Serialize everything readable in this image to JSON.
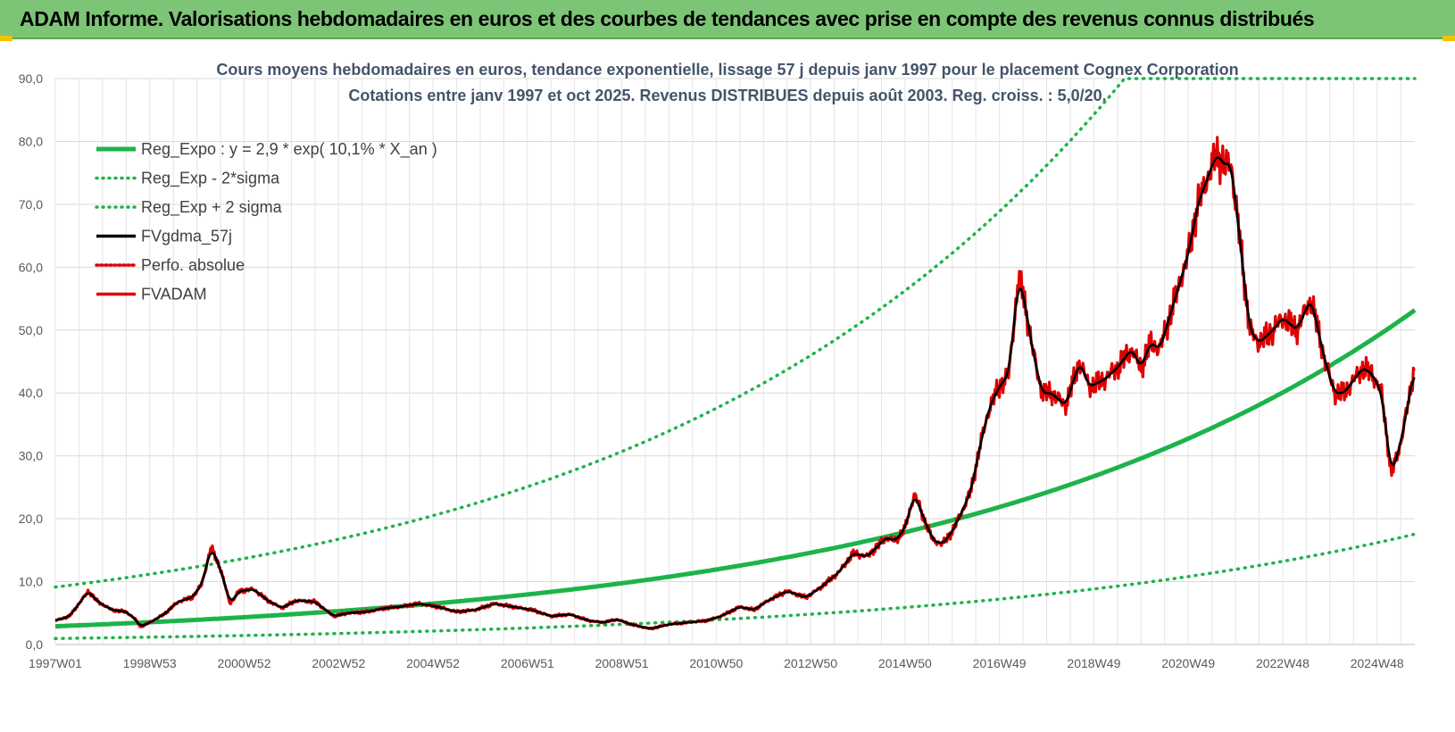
{
  "header": {
    "title": "ADAM Informe. Valorisations hebdomadaires en euros et des courbes de tendances avec prise en compte des revenus connus distribués"
  },
  "chart_data": {
    "type": "line",
    "title": "Cours moyens hebdomadaires en euros, tendance exponentielle, lissage 57 j depuis janv 1997 pour le placement Cognex Corporation",
    "subtitle": "Cotations entre janv 1997 et oct 2025. Revenus DISTRIBUES depuis août 2003. Reg. croiss. : 5,0/20.",
    "xlabel": "",
    "ylabel": "",
    "ylim": [
      0,
      90
    ],
    "xlim": [
      1997.0,
      2025.8
    ],
    "grid": true,
    "legend_position": "top-left",
    "y_ticks": [
      "0,0",
      "10,0",
      "20,0",
      "30,0",
      "40,0",
      "50,0",
      "60,0",
      "70,0",
      "80,0",
      "90,0"
    ],
    "x_ticks": [
      {
        "label": "1997W01",
        "x": 1997.0
      },
      {
        "label": "1998W53",
        "x": 1999.0
      },
      {
        "label": "2000W52",
        "x": 2001.0
      },
      {
        "label": "2002W52",
        "x": 2003.0
      },
      {
        "label": "2004W52",
        "x": 2005.0
      },
      {
        "label": "2006W51",
        "x": 2007.0
      },
      {
        "label": "2008W51",
        "x": 2009.0
      },
      {
        "label": "2010W50",
        "x": 2011.0
      },
      {
        "label": "2012W50",
        "x": 2013.0
      },
      {
        "label": "2014W50",
        "x": 2015.0
      },
      {
        "label": "2016W49",
        "x": 2017.0
      },
      {
        "label": "2018W49",
        "x": 2019.0
      },
      {
        "label": "2020W49",
        "x": 2021.0
      },
      {
        "label": "2022W48",
        "x": 2023.0
      },
      {
        "label": "2024W48",
        "x": 2025.0
      }
    ],
    "regression": {
      "a": 2.9,
      "rate": 0.101,
      "lower_factor": 0.33,
      "upper_factor": 3.15
    },
    "series": [
      {
        "name": "Reg_Expo : y = 2,9 * exp( 10,1% *  X_an )",
        "kind": "reg",
        "color": "#1db34a",
        "style": "solid"
      },
      {
        "name": "Reg_Exp - 2*sigma",
        "kind": "lower",
        "color": "#1db34a",
        "style": "dotted"
      },
      {
        "name": "Reg_Exp + 2 sigma",
        "kind": "upper",
        "color": "#1db34a",
        "style": "dotted"
      },
      {
        "name": "FVgdma_57j",
        "kind": "smooth",
        "color": "#000000",
        "style": "solid"
      },
      {
        "name": "Perfo. absolue",
        "kind": "perfo",
        "color": "#e00000",
        "style": "dotted"
      },
      {
        "name": "FVADAM",
        "kind": "price",
        "color": "#e00000",
        "style": "solid",
        "x": [
          1997.0,
          1997.3,
          1997.5,
          1997.7,
          1997.9,
          1998.2,
          1998.5,
          1998.7,
          1998.8,
          1999.0,
          1999.3,
          1999.6,
          1999.9,
          2000.1,
          2000.3,
          2000.5,
          2000.7,
          2000.9,
          2001.2,
          2001.5,
          2001.8,
          2002.1,
          2002.5,
          2002.9,
          2003.2,
          2003.6,
          2004.0,
          2004.3,
          2004.7,
          2005.1,
          2005.5,
          2005.9,
          2006.3,
          2006.7,
          2007.1,
          2007.5,
          2007.9,
          2008.3,
          2008.6,
          2008.9,
          2009.2,
          2009.6,
          2010.0,
          2010.4,
          2010.8,
          2011.1,
          2011.5,
          2011.8,
          2012.1,
          2012.5,
          2012.9,
          2013.2,
          2013.6,
          2013.9,
          2014.2,
          2014.6,
          2014.8,
          2015.0,
          2015.2,
          2015.4,
          2015.6,
          2015.8,
          2016.0,
          2016.2,
          2016.4,
          2016.6,
          2016.8,
          2017.0,
          2017.2,
          2017.4,
          2017.5,
          2017.7,
          2017.9,
          2018.1,
          2018.4,
          2018.7,
          2018.9,
          2019.2,
          2019.5,
          2019.8,
          2020.0,
          2020.2,
          2020.4,
          2020.6,
          2020.8,
          2021.0,
          2021.2,
          2021.4,
          2021.6,
          2021.8,
          2021.9,
          2022.1,
          2022.3,
          2022.5,
          2022.8,
          2023.0,
          2023.3,
          2023.6,
          2023.9,
          2024.1,
          2024.3,
          2024.5,
          2024.7,
          2024.9,
          2025.1,
          2025.3,
          2025.5,
          2025.7,
          2025.8
        ],
        "values": [
          3.8,
          4.5,
          6.5,
          8.5,
          6.8,
          5.5,
          5.2,
          4.0,
          2.8,
          3.5,
          4.8,
          6.8,
          7.5,
          9.5,
          15.5,
          12.0,
          6.5,
          8.5,
          8.8,
          7.0,
          5.8,
          7.0,
          6.8,
          4.5,
          5.0,
          5.2,
          5.8,
          6.0,
          6.5,
          6.0,
          5.2,
          5.5,
          6.5,
          6.0,
          5.5,
          4.5,
          4.8,
          3.8,
          3.5,
          4.0,
          3.2,
          2.5,
          3.2,
          3.5,
          3.8,
          4.5,
          6.0,
          5.5,
          7.0,
          8.5,
          7.5,
          9.0,
          11.5,
          14.5,
          14.0,
          17.0,
          16.5,
          18.5,
          24.0,
          20.0,
          16.5,
          16.0,
          18.0,
          21.0,
          24.5,
          32.0,
          38.0,
          41.0,
          43.0,
          58.0,
          56.0,
          47.0,
          40.0,
          40.0,
          38.0,
          45.0,
          41.0,
          42.0,
          44.0,
          47.0,
          44.0,
          48.0,
          47.0,
          52.0,
          57.0,
          62.0,
          70.0,
          74.0,
          78.0,
          76.0,
          77.0,
          64.0,
          50.0,
          48.0,
          50.0,
          52.0,
          50.0,
          55.0,
          45.0,
          40.0,
          40.0,
          42.0,
          44.0,
          43.0,
          40.0,
          27.0,
          32.0,
          40.0,
          45.0
        ]
      }
    ]
  }
}
